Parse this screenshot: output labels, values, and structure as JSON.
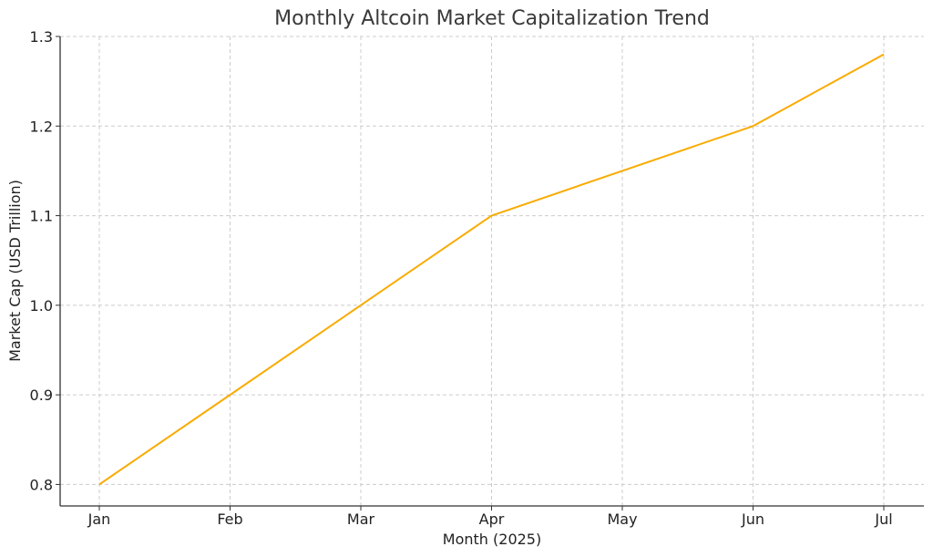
{
  "chart_data": {
    "type": "line",
    "title": "Monthly Altcoin Market Capitalization Trend",
    "xlabel": "Month (2025)",
    "ylabel": "Market Cap (USD Trillion)",
    "categories": [
      "Jan",
      "Feb",
      "Mar",
      "Apr",
      "May",
      "Jun",
      "Jul"
    ],
    "series": [
      {
        "values": [
          0.8,
          0.9,
          1.0,
          1.1,
          1.15,
          1.2,
          1.28
        ]
      }
    ],
    "ylim": [
      0.776,
      1.3
    ],
    "yticks": [
      "0.8",
      "0.9",
      "1.0",
      "1.1",
      "1.2",
      "1.3"
    ],
    "grid": true,
    "line_color": "#f9ab00"
  }
}
